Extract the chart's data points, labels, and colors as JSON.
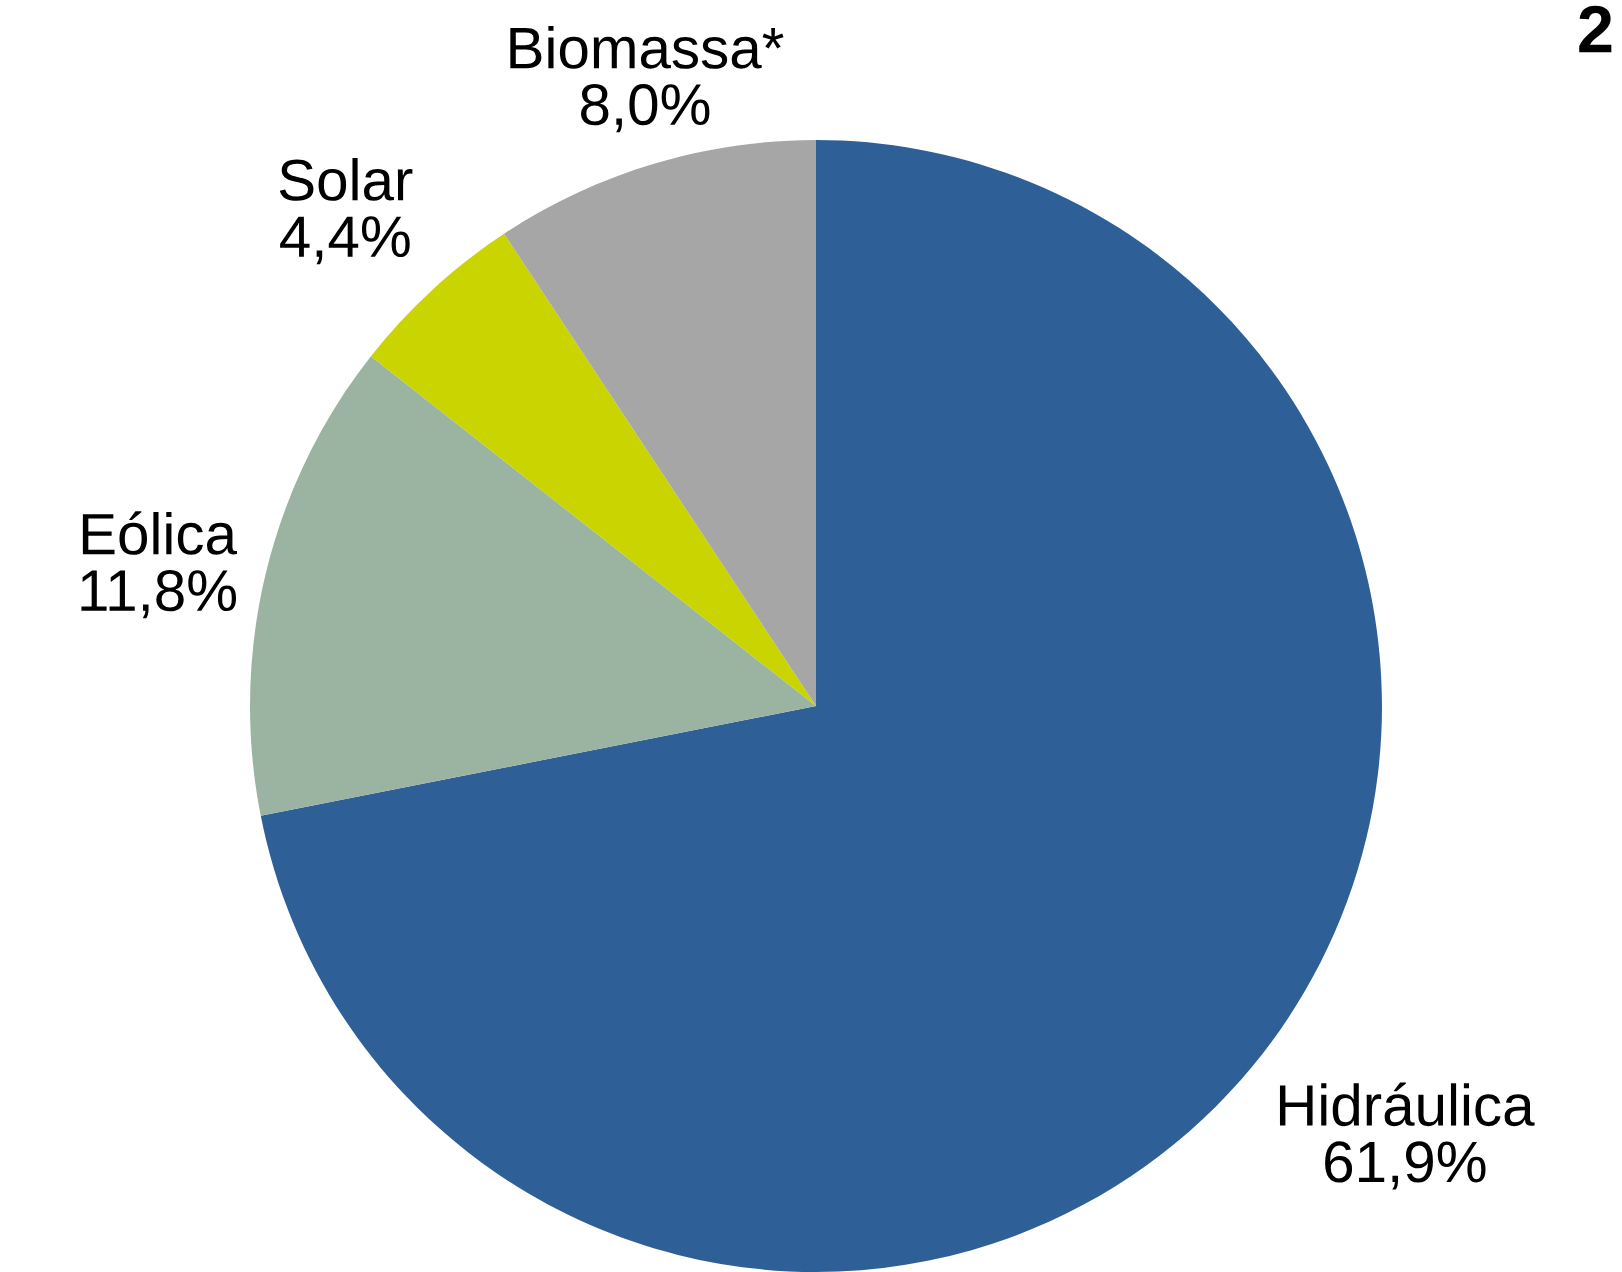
{
  "chart_data": {
    "type": "pie",
    "title": "2",
    "categories": [
      "Hidráulica",
      "Eólica",
      "Solar",
      "Biomassa*"
    ],
    "values": [
      61.9,
      11.8,
      4.4,
      8.0
    ],
    "value_labels": [
      "61,9%",
      "11,8%",
      "4,4%",
      "8,0%"
    ],
    "colors": [
      "#2e5f97",
      "#9bb4a2",
      "#c9d400",
      "#a6a6a6"
    ]
  }
}
